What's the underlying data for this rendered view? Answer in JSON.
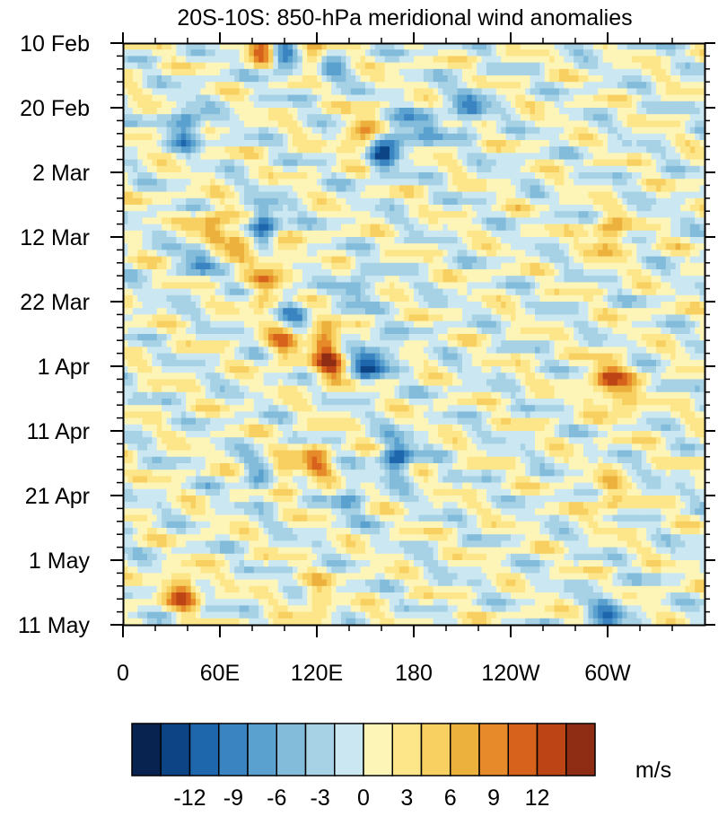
{
  "chart_data": {
    "type": "heatmap",
    "title": "20S-10S: 850-hPa meridional wind anomalies",
    "xlabel": "",
    "ylabel": "",
    "x_ticks": [
      {
        "lon": 0,
        "label": "0"
      },
      {
        "lon": 60,
        "label": "60E"
      },
      {
        "lon": 120,
        "label": "120E"
      },
      {
        "lon": 180,
        "label": "180"
      },
      {
        "lon": 240,
        "label": "120W"
      },
      {
        "lon": 300,
        "label": "60W"
      }
    ],
    "y_ticks": [
      {
        "day": 0,
        "label": "10 Feb"
      },
      {
        "day": 10,
        "label": "20 Feb"
      },
      {
        "day": 20,
        "label": "2 Mar"
      },
      {
        "day": 30,
        "label": "12 Mar"
      },
      {
        "day": 40,
        "label": "22 Mar"
      },
      {
        "day": 50,
        "label": "1 Apr"
      },
      {
        "day": 60,
        "label": "11 Apr"
      },
      {
        "day": 70,
        "label": "21 Apr"
      },
      {
        "day": 80,
        "label": "1 May"
      },
      {
        "day": 90,
        "label": "11 May"
      }
    ],
    "xlim": [
      0,
      360
    ],
    "ylim": [
      0,
      90
    ],
    "colorbar": {
      "unit": "m/s",
      "levels": [
        -14,
        -12,
        -10,
        -8,
        -6,
        -4,
        -2,
        0,
        2,
        4,
        6,
        8,
        10,
        12,
        14
      ],
      "tick_labels": [
        {
          "value": -12,
          "label": "-12"
        },
        {
          "value": -9,
          "label": "-9"
        },
        {
          "value": -6,
          "label": "-6"
        },
        {
          "value": -3,
          "label": "-3"
        },
        {
          "value": 0,
          "label": "0"
        },
        {
          "value": 3,
          "label": "3"
        },
        {
          "value": 6,
          "label": "6"
        },
        {
          "value": 9,
          "label": "9"
        },
        {
          "value": 12,
          "label": "12"
        }
      ],
      "colors": [
        "#08234f",
        "#0d4486",
        "#1f67ad",
        "#3a85c1",
        "#5aa1cf",
        "#83bcdb",
        "#a7d2e5",
        "#cbe8f2",
        "#fdf5b8",
        "#fde68a",
        "#f7d061",
        "#ecb03c",
        "#e68a2a",
        "#d6621b",
        "#bd4515",
        "#8e2c14"
      ]
    },
    "field_features": [
      {
        "lon": 88,
        "day": 1,
        "value": 12
      },
      {
        "lon": 97,
        "day": 2,
        "value": -12
      },
      {
        "lon": 118,
        "day": 2,
        "value": 6
      },
      {
        "lon": 128,
        "day": 4,
        "value": -6
      },
      {
        "lon": 40,
        "day": 13,
        "value": -10
      },
      {
        "lon": 215,
        "day": 10,
        "value": -8
      },
      {
        "lon": 190,
        "day": 13,
        "value": -6
      },
      {
        "lon": 150,
        "day": 14,
        "value": 10
      },
      {
        "lon": 160,
        "day": 17,
        "value": -10
      },
      {
        "lon": 170,
        "day": 14,
        "value": -7
      },
      {
        "lon": 55,
        "day": 29,
        "value": 10
      },
      {
        "lon": 48,
        "day": 33,
        "value": -8
      },
      {
        "lon": 88,
        "day": 28,
        "value": -11
      },
      {
        "lon": 73,
        "day": 31,
        "value": 6
      },
      {
        "lon": 95,
        "day": 33,
        "value": 5
      },
      {
        "lon": 88,
        "day": 38,
        "value": 7
      },
      {
        "lon": 105,
        "day": 42,
        "value": -7
      },
      {
        "lon": 145,
        "day": 38,
        "value": -6
      },
      {
        "lon": 100,
        "day": 46,
        "value": 9
      },
      {
        "lon": 125,
        "day": 46,
        "value": 9
      },
      {
        "lon": 128,
        "day": 50,
        "value": 10
      },
      {
        "lon": 150,
        "day": 50,
        "value": -8
      },
      {
        "lon": 160,
        "day": 48,
        "value": -6
      },
      {
        "lon": 300,
        "day": 30,
        "value": 9
      },
      {
        "lon": 300,
        "day": 52,
        "value": 11
      },
      {
        "lon": 310,
        "day": 55,
        "value": 6
      },
      {
        "lon": 170,
        "day": 64,
        "value": -11
      },
      {
        "lon": 120,
        "day": 65,
        "value": 8
      },
      {
        "lon": 100,
        "day": 66,
        "value": 6
      },
      {
        "lon": 85,
        "day": 67,
        "value": -6
      },
      {
        "lon": 140,
        "day": 71,
        "value": -5
      },
      {
        "lon": 38,
        "day": 85,
        "value": 11
      },
      {
        "lon": 300,
        "day": 88,
        "value": -8
      },
      {
        "lon": 300,
        "day": 70,
        "value": 6
      },
      {
        "lon": 120,
        "day": 86,
        "value": 5
      }
    ]
  }
}
